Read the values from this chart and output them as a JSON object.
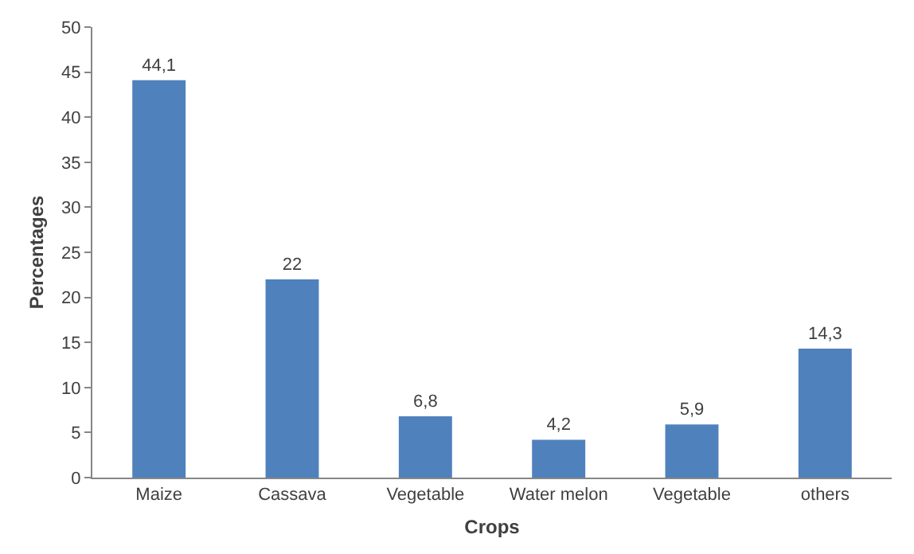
{
  "chart_data": {
    "type": "bar",
    "xlabel": "Crops",
    "ylabel": "Percentages",
    "categories": [
      "Maize",
      "Cassava",
      "Vegetable",
      "Water melon",
      "Vegetable",
      "others"
    ],
    "values": [
      44.1,
      22,
      6.8,
      4.2,
      5.9,
      14.3
    ],
    "value_labels": [
      "44,1",
      "22",
      "6,8",
      "4,2",
      "5,9",
      "14,3"
    ],
    "color": "#4f81bd",
    "ylim": [
      0,
      50
    ],
    "yticks": [
      0,
      5,
      10,
      15,
      20,
      25,
      30,
      35,
      40,
      45,
      50
    ]
  }
}
